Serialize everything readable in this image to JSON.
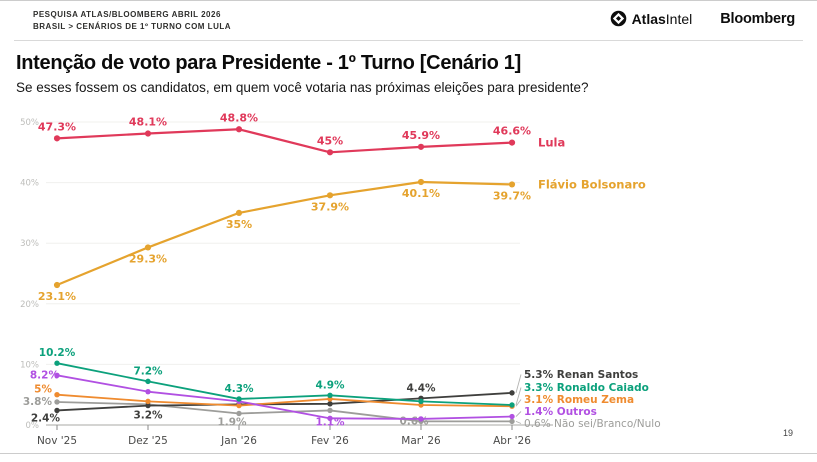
{
  "header": {
    "kicker_line1": "PESQUISA ATLAS/BLOOMBERG ABRIL 2026",
    "kicker_line2": "BRASIL > CENÁRIOS DE 1º TURNO COM LULA",
    "atlas_bold": "Atlas",
    "atlas_light": "Intel",
    "bloomberg": "Bloomberg"
  },
  "title": "Intenção de voto para Presidente - 1º Turno [Cenário 1]",
  "subtitle": "Se esses fossem os candidatos, em quem você votaria nas próximas eleições para presidente?",
  "page_number": "19",
  "colors": {
    "lula": "#e0395a",
    "flavio_bolsonaro": "#e5a32e",
    "renan_santos": "#3f3f3d",
    "ronaldo_caiado": "#0ca17c",
    "romeu_zema": "#ef8b2f",
    "outros": "#b150e2",
    "nao_sei": "#9d9d9a",
    "grid": "#f0f0ee",
    "axis": "#a8a8a6"
  },
  "chart_data": {
    "type": "line",
    "x_categories": [
      "Nov '25",
      "Dez '25",
      "Jan '26",
      "Fev '26",
      "Mar' 26",
      "Abr '26"
    ],
    "ylim": [
      0,
      50
    ],
    "ytick_labels": [
      "0%",
      "10%",
      "20%",
      "30%",
      "40%",
      "50%"
    ],
    "grid": true,
    "series": [
      {
        "name": "Não sei/Branco/Nulo",
        "color": "#9d9d9a",
        "values": [
          3.8,
          3.4,
          1.9,
          2.4,
          0.6,
          0.6
        ],
        "point_labels": [
          "3.8%",
          "",
          "1.9%",
          "",
          "0.6%",
          ""
        ]
      },
      {
        "name": "Renan Santos",
        "color": "#3f3f3d",
        "values": [
          2.4,
          3.2,
          3.4,
          3.5,
          4.4,
          5.3
        ],
        "point_labels": [
          "2.4%",
          "3.2%",
          "",
          "",
          "4.4%",
          ""
        ]
      },
      {
        "name": "Romeu Zema",
        "color": "#ef8b2f",
        "values": [
          5,
          3.9,
          3.2,
          4.3,
          3.3,
          3.1
        ],
        "point_labels": [
          "5%",
          "",
          "",
          "",
          "",
          ""
        ]
      },
      {
        "name": "Outros",
        "color": "#b150e2",
        "values": [
          8.2,
          5.5,
          3.9,
          1.1,
          1.0,
          1.4
        ],
        "point_labels": [
          "8.2%",
          "",
          "",
          "1.1%",
          "",
          ""
        ]
      },
      {
        "name": "Ronaldo Caiado",
        "color": "#0ca17c",
        "values": [
          10.2,
          7.2,
          4.3,
          4.9,
          3.9,
          3.3
        ],
        "point_labels": [
          "10.2%",
          "7.2%",
          "4.3%",
          "4.9%",
          "",
          ""
        ]
      },
      {
        "name": "Flávio Bolsonaro",
        "color": "#e5a32e",
        "values": [
          23.1,
          29.3,
          35,
          37.9,
          40.1,
          39.7
        ],
        "point_labels": [
          "23.1%",
          "29.3%",
          "35%",
          "37.9%",
          "40.1%",
          "39.7%"
        ],
        "end_label": "Flávio Bolsonaro"
      },
      {
        "name": "Lula",
        "color": "#e0395a",
        "values": [
          47.3,
          48.1,
          48.8,
          45,
          45.9,
          46.6
        ],
        "point_labels": [
          "47.3%",
          "48.1%",
          "48.8%",
          "45%",
          "45.9%",
          "46.6%"
        ],
        "end_label": "Lula"
      }
    ],
    "legend": [
      {
        "value": "5.3%",
        "name": "Renan Santos",
        "color": "#3f3f3d"
      },
      {
        "value": "3.3%",
        "name": "Ronaldo Caiado",
        "color": "#0ca17c"
      },
      {
        "value": "3.1%",
        "name": "Romeu Zema",
        "color": "#ef8b2f"
      },
      {
        "value": "1.4%",
        "name": "Outros",
        "color": "#b150e2"
      },
      {
        "value": "0.6%",
        "name": "Não sei/Branco/Nulo",
        "color": "#9d9d9a",
        "muted": true
      }
    ],
    "legend_position": "right"
  }
}
